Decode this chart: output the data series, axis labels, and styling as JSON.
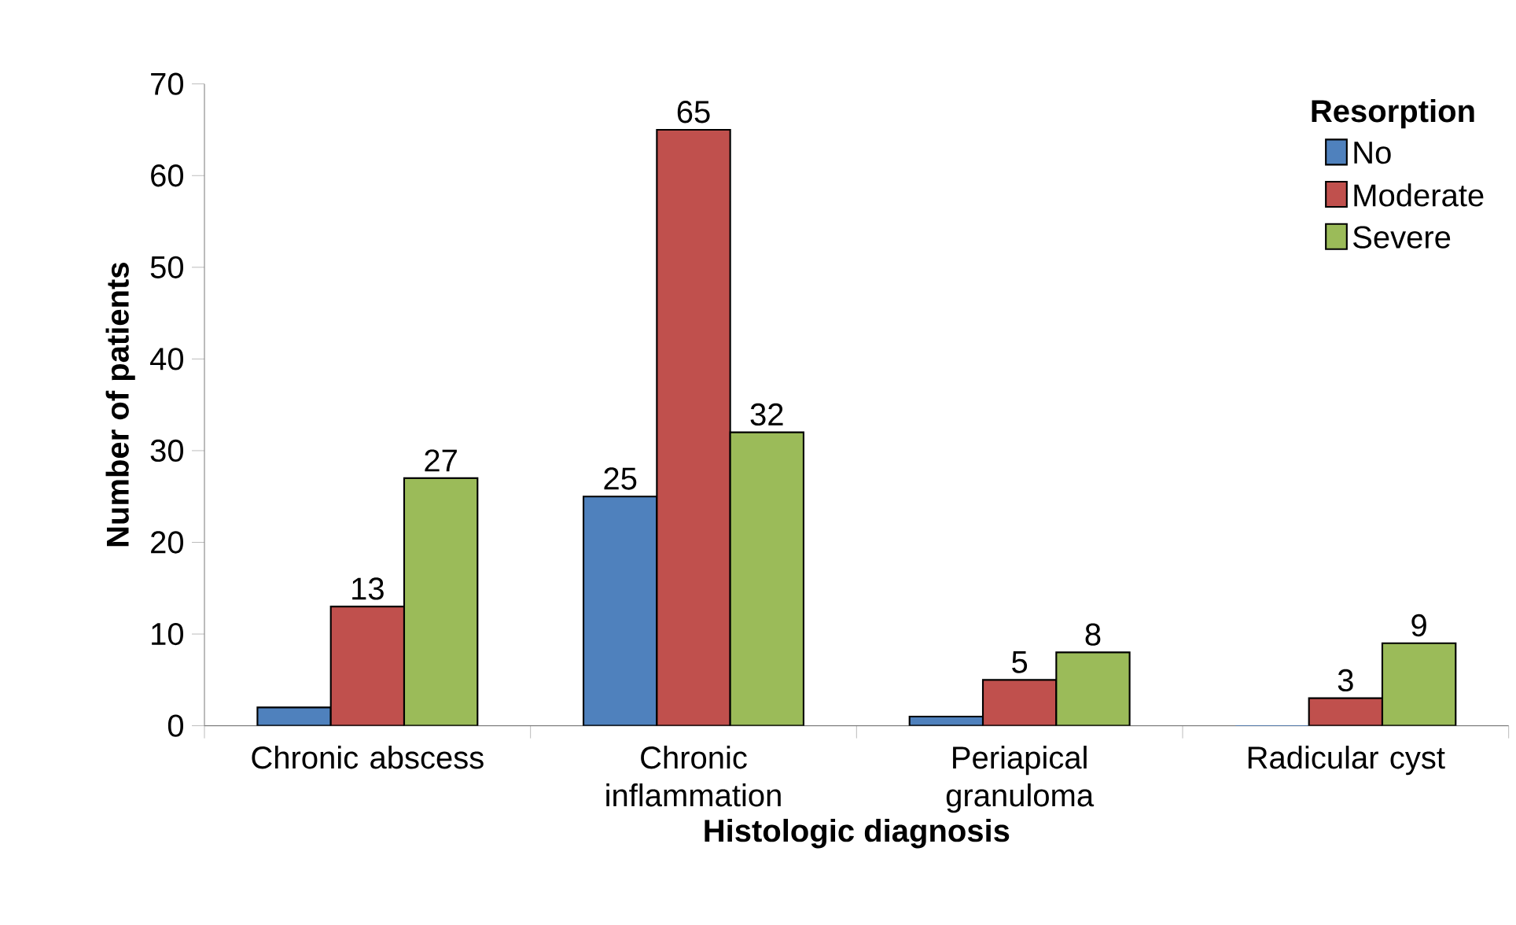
{
  "chart_data": {
    "type": "bar",
    "xlabel": "Histologic diagnosis",
    "ylabel": "Number of patients",
    "categories": [
      "Chronic abscess",
      "Chronic inflammation",
      "Periapical granuloma",
      "Radicular cyst"
    ],
    "series": [
      {
        "name": "No",
        "color": "#4f81bd",
        "values": [
          2,
          25,
          1,
          0
        ],
        "value_labels": [
          null,
          "25",
          null,
          null
        ]
      },
      {
        "name": "Moderate",
        "color": "#c0504d",
        "values": [
          13,
          65,
          5,
          3
        ],
        "value_labels": [
          "13",
          "65",
          "5",
          "3"
        ]
      },
      {
        "name": "Severe",
        "color": "#9bbb59",
        "values": [
          27,
          32,
          8,
          9
        ],
        "value_labels": [
          "27",
          "32",
          "8",
          "9"
        ]
      }
    ],
    "legend_title": "Resorption",
    "legend": "top right",
    "grid": false,
    "ylim": [
      0,
      70
    ],
    "yticks": [
      0,
      10,
      20,
      30,
      40,
      50,
      60,
      70
    ]
  }
}
